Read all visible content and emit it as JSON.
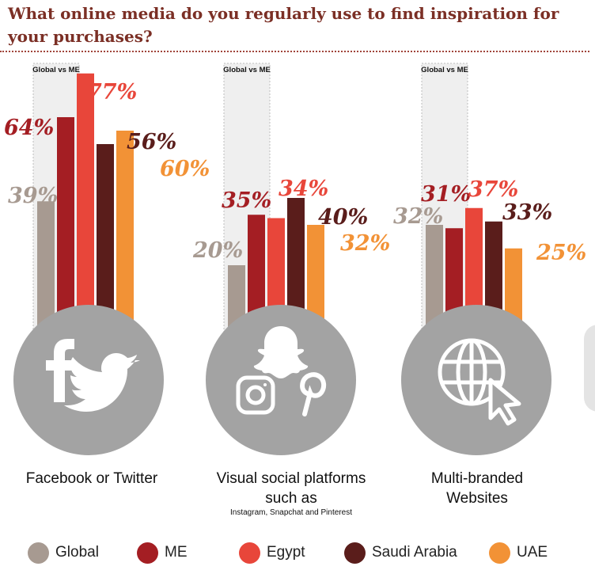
{
  "title": "What online media do you regularly use to find inspiration for your purchases?",
  "chart_data": {
    "type": "bar",
    "series": [
      {
        "name": "Global",
        "color": "#a79a91"
      },
      {
        "name": "ME",
        "color": "#a41e23"
      },
      {
        "name": "Egypt",
        "color": "#e8463a"
      },
      {
        "name": "Saudi Arabia",
        "color": "#5a1d1b"
      },
      {
        "name": "UAE",
        "color": "#f29236"
      }
    ],
    "groups": [
      {
        "label": "Facebook or Twitter",
        "sublabel": "",
        "badge": "Global vs ME",
        "icons": [
          "facebook-icon",
          "twitter-icon"
        ],
        "values": [
          39,
          64,
          77,
          56,
          60
        ]
      },
      {
        "label": "Visual social platforms such as",
        "sublabel": "Instagram, Snapchat and Pinterest",
        "badge": "Global vs ME",
        "icons": [
          "snapchat-icon",
          "instagram-icon",
          "pinterest-icon"
        ],
        "values": [
          20,
          35,
          34,
          40,
          32
        ]
      },
      {
        "label": "Multi-branded Websites",
        "sublabel": "",
        "badge": "Global vs ME",
        "icons": [
          "globe-cursor-icon"
        ],
        "values": [
          32,
          31,
          37,
          33,
          25
        ]
      }
    ],
    "value_suffix": "%"
  },
  "legend": [
    {
      "label": "Global",
      "color": "#a79a91"
    },
    {
      "label": "ME",
      "color": "#a41e23"
    },
    {
      "label": "Egypt",
      "color": "#e8463a"
    },
    {
      "label": "Saudi Arabia",
      "color": "#5a1d1b"
    },
    {
      "label": "UAE",
      "color": "#f29236"
    }
  ]
}
